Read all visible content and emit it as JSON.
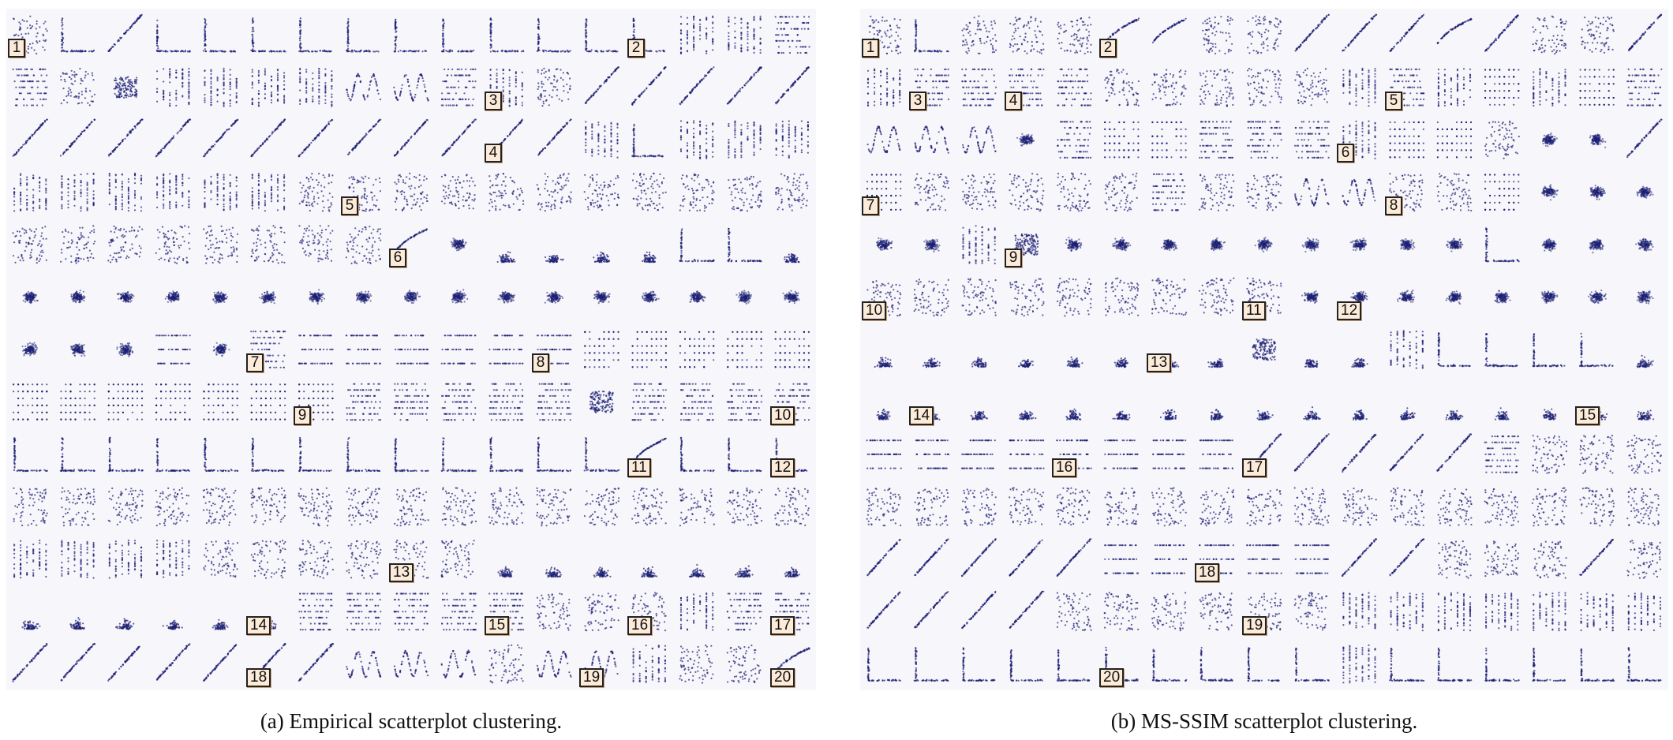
{
  "figure": {
    "caption_a": "(a) Empirical scatterplot clustering.",
    "caption_b": "(b) MS-SSIM scatterplot clustering.",
    "colors": {
      "panel_bg": "#f7f6fb",
      "mark": "#1c1f73",
      "badge_bg": "#fdebd9",
      "badge_border": "#222222"
    },
    "panel_a": {
      "name": "empirical",
      "grid": {
        "rows": 12,
        "cols": 17
      },
      "cells": [
        "s",
        "l",
        "d",
        "l",
        "l",
        "l",
        "l",
        "l",
        "l",
        "l",
        "l",
        "l",
        "l",
        "l",
        "v",
        "v",
        "h",
        "h",
        "s",
        "c",
        "v",
        "v",
        "v",
        "v",
        "z",
        "z",
        "h",
        "v",
        "s",
        "d",
        "d",
        "d",
        "d",
        "d",
        "d",
        "d",
        "d",
        "d",
        "d",
        "d",
        "d",
        "d",
        "d",
        "d",
        "d",
        "d",
        "v",
        "l",
        "v",
        "v",
        "v",
        "v",
        "v",
        "v",
        "v",
        "v",
        "v",
        "s",
        "s",
        "s",
        "s",
        "s",
        "s",
        "s",
        "s",
        "s",
        "s",
        "s",
        "s",
        "s",
        "s",
        "s",
        "s",
        "s",
        "s",
        "s",
        "e",
        "b",
        "t",
        "t",
        "t",
        "t",
        "l",
        "l",
        "t",
        "b",
        "b",
        "b",
        "b",
        "b",
        "b",
        "b",
        "b",
        "b",
        "b",
        "b",
        "b",
        "b",
        "b",
        "b",
        "b",
        "b",
        "b",
        "b",
        "b",
        "n",
        "b",
        "h",
        "n",
        "n",
        "n",
        "n",
        "n",
        "n",
        "g",
        "g",
        "g",
        "g",
        "g",
        "g",
        "g",
        "g",
        "g",
        "g",
        "g",
        "g",
        "h",
        "h",
        "h",
        "h",
        "h",
        "c",
        "h",
        "h",
        "h",
        "h",
        "l",
        "l",
        "l",
        "l",
        "l",
        "l",
        "l",
        "l",
        "l",
        "l",
        "l",
        "l",
        "l",
        "e",
        "l",
        "l",
        "l",
        "s",
        "s",
        "s",
        "s",
        "s",
        "s",
        "s",
        "s",
        "s",
        "s",
        "s",
        "s",
        "s",
        "s",
        "s",
        "s",
        "s",
        "v",
        "v",
        "v",
        "v",
        "s",
        "s",
        "s",
        "s",
        "s",
        "s",
        "t",
        "t",
        "t",
        "t",
        "t",
        "t",
        "t",
        "t",
        "t",
        "t",
        "t",
        "t",
        "t",
        "h",
        "h",
        "h",
        "h",
        "h",
        "s",
        "s",
        "s",
        "v",
        "h",
        "h",
        "d",
        "d",
        "d",
        "d",
        "d",
        "d",
        "d",
        "z",
        "z",
        "z",
        "s",
        "z",
        "z",
        "v",
        "s",
        "s",
        "e"
      ],
      "badges": [
        {
          "label": "1",
          "row": 0,
          "col": 0
        },
        {
          "label": "2",
          "row": 0,
          "col": 13
        },
        {
          "label": "3",
          "row": 1,
          "col": 10
        },
        {
          "label": "4",
          "row": 2,
          "col": 10
        },
        {
          "label": "5",
          "row": 3,
          "col": 7
        },
        {
          "label": "6",
          "row": 4,
          "col": 8
        },
        {
          "label": "7",
          "row": 6,
          "col": 5
        },
        {
          "label": "8",
          "row": 6,
          "col": 11
        },
        {
          "label": "9",
          "row": 7,
          "col": 6
        },
        {
          "label": "10",
          "row": 7,
          "col": 16
        },
        {
          "label": "11",
          "row": 8,
          "col": 13
        },
        {
          "label": "12",
          "row": 8,
          "col": 16
        },
        {
          "label": "13",
          "row": 10,
          "col": 8
        },
        {
          "label": "14",
          "row": 11,
          "col": 5
        },
        {
          "label": "15",
          "row": 11,
          "col": 10
        },
        {
          "label": "16",
          "row": 11,
          "col": 13
        },
        {
          "label": "17",
          "row": 11,
          "col": 16
        },
        {
          "label": "18",
          "row": 12,
          "col": 5
        },
        {
          "label": "19",
          "row": 12,
          "col": 12
        },
        {
          "label": "20",
          "row": 12,
          "col": 16
        }
      ]
    },
    "panel_b": {
      "name": "ms-ssim",
      "grid": {
        "rows": 12,
        "cols": 17
      },
      "cells": [
        "s",
        "l",
        "s",
        "s",
        "s",
        "e",
        "e",
        "s",
        "s",
        "d",
        "d",
        "d",
        "e",
        "d",
        "s",
        "s",
        "d",
        "v",
        "h",
        "h",
        "h",
        "h",
        "s",
        "s",
        "s",
        "s",
        "s",
        "v",
        "h",
        "v",
        "g",
        "v",
        "g",
        "h",
        "z",
        "z",
        "z",
        "b",
        "h",
        "g",
        "g",
        "h",
        "h",
        "h",
        "v",
        "g",
        "g",
        "s",
        "b",
        "b",
        "d",
        "g",
        "s",
        "s",
        "s",
        "s",
        "s",
        "h",
        "s",
        "s",
        "z",
        "z",
        "s",
        "s",
        "g",
        "b",
        "b",
        "b",
        "b",
        "b",
        "v",
        "c",
        "b",
        "b",
        "b",
        "b",
        "b",
        "b",
        "b",
        "b",
        "b",
        "l",
        "b",
        "b",
        "b",
        "s",
        "s",
        "s",
        "s",
        "s",
        "s",
        "s",
        "s",
        "s",
        "b",
        "b",
        "b",
        "b",
        "b",
        "b",
        "b",
        "b",
        "t",
        "t",
        "t",
        "t",
        "t",
        "t",
        "t",
        "t",
        "c",
        "t",
        "t",
        "v",
        "l",
        "l",
        "l",
        "l",
        "t",
        "t",
        "t",
        "t",
        "t",
        "t",
        "t",
        "t",
        "t",
        "t",
        "t",
        "t",
        "t",
        "t",
        "t",
        "t",
        "t",
        "t",
        "n",
        "n",
        "n",
        "n",
        "n",
        "n",
        "n",
        "n",
        "d",
        "d",
        "d",
        "d",
        "d",
        "h",
        "s",
        "s",
        "s",
        "s",
        "s",
        "s",
        "s",
        "s",
        "s",
        "s",
        "s",
        "s",
        "s",
        "s",
        "s",
        "s",
        "s",
        "s",
        "s",
        "s",
        "d",
        "d",
        "d",
        "d",
        "d",
        "n",
        "n",
        "n",
        "n",
        "n",
        "d",
        "d",
        "s",
        "s",
        "s",
        "d",
        "s",
        "d",
        "d",
        "d",
        "d",
        "s",
        "s",
        "s",
        "s",
        "s",
        "s",
        "v",
        "v",
        "v",
        "v",
        "v",
        "v",
        "v",
        "l",
        "l",
        "l",
        "l",
        "l",
        "l",
        "l",
        "l",
        "l",
        "l",
        "v",
        "l",
        "l",
        "l",
        "l",
        "l",
        "l"
      ],
      "badges": [
        {
          "label": "1",
          "row": 0,
          "col": 0
        },
        {
          "label": "2",
          "row": 0,
          "col": 5
        },
        {
          "label": "3",
          "row": 1,
          "col": 1
        },
        {
          "label": "4",
          "row": 1,
          "col": 3
        },
        {
          "label": "5",
          "row": 1,
          "col": 11
        },
        {
          "label": "6",
          "row": 2,
          "col": 10
        },
        {
          "label": "7",
          "row": 3,
          "col": 0
        },
        {
          "label": "8",
          "row": 3,
          "col": 11
        },
        {
          "label": "9",
          "row": 4,
          "col": 3
        },
        {
          "label": "10",
          "row": 5,
          "col": 0
        },
        {
          "label": "11",
          "row": 5,
          "col": 8
        },
        {
          "label": "12",
          "row": 5,
          "col": 10
        },
        {
          "label": "13",
          "row": 6,
          "col": 6
        },
        {
          "label": "14",
          "row": 7,
          "col": 1
        },
        {
          "label": "15",
          "row": 7,
          "col": 15
        },
        {
          "label": "16",
          "row": 8,
          "col": 4
        },
        {
          "label": "17",
          "row": 8,
          "col": 8
        },
        {
          "label": "18",
          "row": 10,
          "col": 7
        },
        {
          "label": "19",
          "row": 11,
          "col": 8
        },
        {
          "label": "20",
          "row": 12,
          "col": 5
        }
      ]
    }
  }
}
